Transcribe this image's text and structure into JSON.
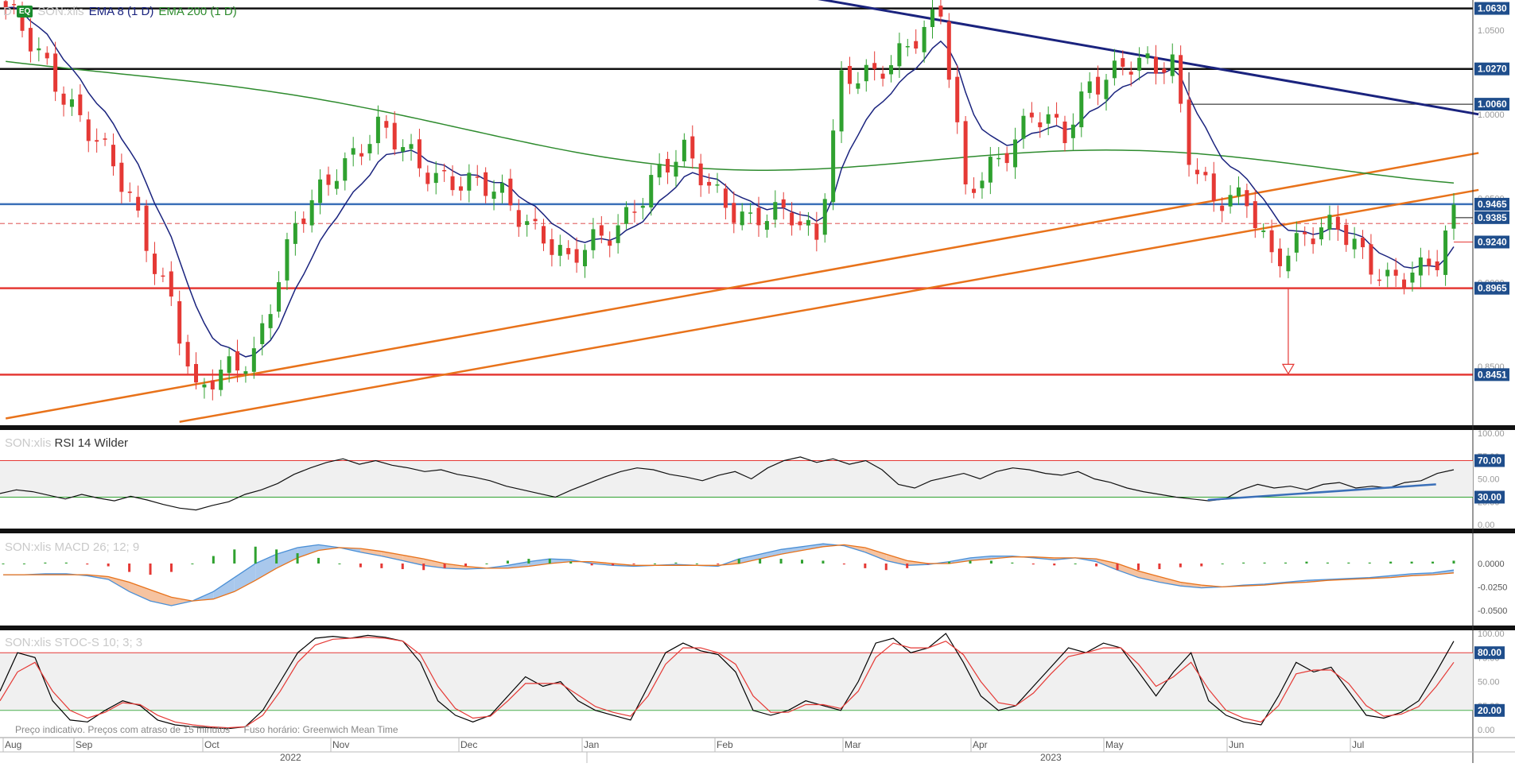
{
  "header": {
    "badge": "EQ",
    "symbol": "SON:xlis",
    "indicators": [
      {
        "label": "EMA 8 (1 D)",
        "color": "#1a237e"
      },
      {
        "label": "EMA 200 (1 D)",
        "color": "#2e8b2e"
      }
    ]
  },
  "footer_note": {
    "delay_text": "Preço indicativo. Preços com atraso de 15 minutos",
    "timezone_text": "Fuso horário: Greenwich Mean Time"
  },
  "price_panel": {
    "ylim": [
      0.815,
      1.068
    ],
    "axis_ticks": [
      1.05,
      1.0,
      0.95,
      0.9,
      0.85
    ],
    "price_tags": [
      {
        "label": "1.0630",
        "value": 1.063,
        "color": "#1f4e8c"
      },
      {
        "label": "1.0270",
        "value": 1.027,
        "color": "#1f4e8c"
      },
      {
        "label": "1.0060",
        "value": 1.006,
        "color": "#1f4e8c"
      },
      {
        "label": "0.9465",
        "value": 0.9465,
        "color": "#1f4e8c"
      },
      {
        "label": "0.9385",
        "value": 0.9385,
        "color": "#1f4e8c"
      },
      {
        "label": "0.9240",
        "value": 0.924,
        "color": "#1f4e8c"
      },
      {
        "label": "0.8965",
        "value": 0.8965,
        "color": "#1f4e8c"
      },
      {
        "label": "0.8451",
        "value": 0.8451,
        "color": "#1f4e8c"
      }
    ],
    "horizontal_lines": [
      {
        "value": 1.063,
        "color": "#111111"
      },
      {
        "value": 1.027,
        "color": "#111111"
      },
      {
        "value": 0.9465,
        "color": "#3a6fb8"
      },
      {
        "value": 0.8965,
        "color": "#e53935"
      },
      {
        "value": 0.8451,
        "color": "#e53935"
      }
    ],
    "dashed_line": {
      "value": 0.935,
      "color": "#e57373"
    }
  },
  "chart_data": [
    {
      "type": "candlestick",
      "panel": "price",
      "x_months": [
        "Aug",
        "Sep",
        "Oct",
        "Nov",
        "Dec",
        "Jan",
        "Feb",
        "Mar",
        "Apr",
        "May",
        "Jun",
        "Jul"
      ],
      "x_years": [
        "2022",
        "2023"
      ],
      "y_ticks": [
        1.05,
        1.0,
        0.95,
        0.9,
        0.85
      ],
      "ohlc_anchors": [
        [
          0,
          1.06
        ],
        [
          5,
          1.03
        ],
        [
          10,
          0.99
        ],
        [
          15,
          0.95
        ],
        [
          20,
          0.89
        ],
        [
          23,
          0.83
        ],
        [
          27,
          0.85
        ],
        [
          30,
          0.86
        ],
        [
          35,
          0.93
        ],
        [
          40,
          0.97
        ],
        [
          45,
          0.99
        ],
        [
          50,
          0.97
        ],
        [
          55,
          0.96
        ],
        [
          60,
          0.95
        ],
        [
          65,
          0.93
        ],
        [
          68,
          0.91
        ],
        [
          73,
          0.93
        ],
        [
          78,
          0.96
        ],
        [
          82,
          0.975
        ],
        [
          86,
          0.955
        ],
        [
          90,
          0.935
        ],
        [
          95,
          0.94
        ],
        [
          98,
          0.93
        ],
        [
          101,
          1.02
        ],
        [
          105,
          1.02
        ],
        [
          110,
          1.05
        ],
        [
          113,
          1.06
        ],
        [
          116,
          0.95
        ],
        [
          119,
          0.97
        ],
        [
          124,
          1.0
        ],
        [
          128,
          0.985
        ],
        [
          131,
          1.02
        ],
        [
          135,
          1.03
        ],
        [
          139,
          1.025
        ],
        [
          141,
          1.03
        ],
        [
          143,
          0.98
        ],
        [
          146,
          0.95
        ],
        [
          150,
          0.945
        ],
        [
          153,
          0.915
        ],
        [
          157,
          0.93
        ],
        [
          161,
          0.93
        ],
        [
          163,
          0.92
        ],
        [
          167,
          0.905
        ],
        [
          171,
          0.905
        ],
        [
          173,
          0.91
        ],
        [
          175,
          0.94
        ]
      ],
      "series": [
        {
          "name": "EMA 8 (1 D)",
          "color": "#1a237e"
        },
        {
          "name": "EMA 200 (1 D)",
          "color": "#2e8b2e"
        }
      ],
      "annotations": {
        "downtrend_line": {
          "from": {
            "x": 85,
            "value": 1.08
          },
          "to": {
            "x": 178,
            "value": 1.0
          },
          "color": "#1a237e"
        },
        "uptrend_lines": [
          {
            "from": {
              "x": 0,
              "value": 0.819
            },
            "to": {
              "x": 178,
              "value": 0.977
            },
            "color": "#e8721a"
          },
          {
            "from": {
              "x": 21,
              "value": 0.817
            },
            "to": {
              "x": 178,
              "value": 0.955
            },
            "color": "#e8721a"
          }
        ],
        "target_arrow": {
          "x": 155,
          "from_value": 0.8965,
          "to_value": 0.8451
        }
      }
    },
    {
      "type": "line",
      "panel": "RSI",
      "title": "RSI 14 Wilder",
      "ylim": [
        0,
        100
      ],
      "y_ticks": [
        100.0,
        75.0,
        50.0,
        25.0,
        0.0
      ],
      "bands": {
        "upper": 70.0,
        "lower": 30.0
      },
      "tags": [
        "70.00",
        "30.00"
      ],
      "series": [
        {
          "values": [
            34,
            38,
            36,
            32,
            28,
            33,
            29,
            26,
            31,
            27,
            22,
            18,
            16,
            21,
            25,
            33,
            38,
            45,
            55,
            62,
            68,
            72,
            66,
            70,
            65,
            62,
            58,
            60,
            55,
            52,
            48,
            42,
            38,
            34,
            30,
            38,
            45,
            52,
            58,
            62,
            60,
            55,
            52,
            48,
            54,
            58,
            50,
            62,
            70,
            74,
            68,
            72,
            66,
            70,
            60,
            44,
            40,
            48,
            52,
            56,
            50,
            58,
            62,
            60,
            56,
            54,
            58,
            50,
            46,
            40,
            36,
            33,
            30,
            28,
            26,
            28,
            38,
            44,
            40,
            42,
            38,
            44,
            46,
            40,
            42,
            40,
            46,
            48,
            56,
            60
          ]
        }
      ],
      "annotations": {
        "trendline": {
          "from": {
            "x": 0.82,
            "value": 27
          },
          "to": {
            "x": 0.975,
            "value": 44
          },
          "color": "#3a6fb8"
        }
      }
    },
    {
      "type": "macd",
      "panel": "MACD",
      "title": "MACD 26; 12; 9",
      "y_ticks": [
        0.0,
        -0.025,
        -0.05
      ],
      "tick_labels": [
        "0.0000",
        "-0.0250",
        "-0.0500"
      ],
      "ylim": [
        -0.062,
        0.028
      ],
      "macd_line": [
        -0.012,
        -0.012,
        -0.011,
        -0.011,
        -0.013,
        -0.017,
        -0.03,
        -0.04,
        -0.045,
        -0.04,
        -0.03,
        -0.015,
        0.0,
        0.01,
        0.017,
        0.02,
        0.017,
        0.012,
        0.008,
        0.003,
        -0.002,
        -0.005,
        -0.006,
        -0.005,
        -0.002,
        0.002,
        0.005,
        0.004,
        0.0,
        -0.002,
        -0.003,
        -0.002,
        -0.001,
        -0.002,
        -0.003,
        0.005,
        0.01,
        0.015,
        0.018,
        0.021,
        0.019,
        0.012,
        0.003,
        -0.002,
        -0.001,
        0.002,
        0.006,
        0.008,
        0.008,
        0.006,
        0.004,
        0.006,
        0.002,
        -0.007,
        -0.015,
        -0.02,
        -0.024,
        -0.026,
        -0.025,
        -0.023,
        -0.022,
        -0.02,
        -0.018,
        -0.017,
        -0.016,
        -0.015,
        -0.013,
        -0.011,
        -0.01,
        -0.007
      ],
      "signal_line": [
        -0.012,
        -0.012,
        -0.012,
        -0.012,
        -0.012,
        -0.014,
        -0.02,
        -0.028,
        -0.036,
        -0.04,
        -0.038,
        -0.03,
        -0.018,
        -0.005,
        0.006,
        0.014,
        0.017,
        0.016,
        0.013,
        0.009,
        0.005,
        0.0,
        -0.003,
        -0.005,
        -0.005,
        -0.003,
        0.0,
        0.002,
        0.002,
        0.0,
        -0.002,
        -0.002,
        -0.002,
        -0.002,
        -0.002,
        0.0,
        0.005,
        0.01,
        0.014,
        0.018,
        0.02,
        0.017,
        0.01,
        0.003,
        0.0,
        0.0,
        0.003,
        0.005,
        0.007,
        0.007,
        0.006,
        0.006,
        0.005,
        0.0,
        -0.008,
        -0.014,
        -0.02,
        -0.023,
        -0.025,
        -0.024,
        -0.023,
        -0.021,
        -0.02,
        -0.018,
        -0.017,
        -0.016,
        -0.015,
        -0.013,
        -0.012,
        -0.01
      ],
      "histogram": [
        0.0,
        0.0,
        0.001,
        0.001,
        -0.001,
        -0.003,
        -0.009,
        -0.012,
        -0.009,
        0.0,
        0.008,
        0.015,
        0.018,
        0.015,
        0.011,
        0.006,
        0.0,
        -0.004,
        -0.005,
        -0.006,
        -0.007,
        -0.005,
        -0.003,
        0.0,
        0.003,
        0.005,
        0.005,
        0.002,
        -0.002,
        -0.002,
        -0.001,
        0.0,
        0.001,
        0.0,
        -0.001,
        0.005,
        0.005,
        0.005,
        0.004,
        0.003,
        -0.001,
        -0.005,
        -0.007,
        -0.005,
        -0.001,
        0.002,
        0.003,
        0.003,
        0.001,
        -0.001,
        -0.002,
        0.0,
        -0.003,
        -0.007,
        -0.007,
        -0.006,
        -0.004,
        -0.003,
        0.0,
        0.001,
        0.001,
        0.001,
        0.002,
        0.001,
        0.001,
        0.001,
        0.002,
        0.002,
        0.002,
        0.003
      ]
    },
    {
      "type": "line",
      "panel": "STOC-S",
      "title": "STOC-S 10; 3; 3",
      "ylim": [
        0,
        100
      ],
      "y_ticks": [
        100.0,
        75.0,
        50.0,
        25.0,
        0.0
      ],
      "bands": {
        "upper": 80.0,
        "lower": 20.0
      },
      "tags": [
        "80.00",
        "20.00"
      ],
      "series": [
        {
          "name": "%K",
          "color": "#000000",
          "values": [
            40,
            80,
            75,
            30,
            10,
            8,
            20,
            30,
            25,
            10,
            5,
            3,
            2,
            1,
            3,
            20,
            50,
            80,
            95,
            97,
            95,
            98,
            96,
            92,
            70,
            30,
            15,
            8,
            15,
            35,
            55,
            45,
            50,
            30,
            20,
            15,
            10,
            45,
            80,
            90,
            82,
            78,
            60,
            20,
            15,
            20,
            30,
            25,
            20,
            50,
            90,
            95,
            80,
            85,
            100,
            70,
            35,
            20,
            25,
            45,
            65,
            85,
            80,
            90,
            85,
            60,
            35,
            60,
            80,
            30,
            15,
            8,
            5,
            35,
            70,
            60,
            65,
            40,
            15,
            12,
            18,
            30,
            60,
            92
          ]
        },
        {
          "name": "%D",
          "color": "#e53935",
          "values": [
            30,
            60,
            70,
            40,
            20,
            12,
            18,
            28,
            26,
            15,
            8,
            5,
            3,
            2,
            3,
            15,
            40,
            70,
            88,
            94,
            95,
            96,
            95,
            92,
            78,
            45,
            22,
            12,
            14,
            30,
            48,
            48,
            48,
            36,
            24,
            18,
            14,
            35,
            68,
            85,
            85,
            80,
            68,
            35,
            18,
            18,
            26,
            26,
            22,
            40,
            75,
            90,
            85,
            85,
            92,
            78,
            50,
            28,
            25,
            38,
            58,
            76,
            80,
            85,
            85,
            68,
            45,
            55,
            70,
            42,
            20,
            12,
            8,
            25,
            58,
            62,
            62,
            48,
            25,
            14,
            16,
            24,
            45,
            70
          ]
        }
      ]
    }
  ]
}
